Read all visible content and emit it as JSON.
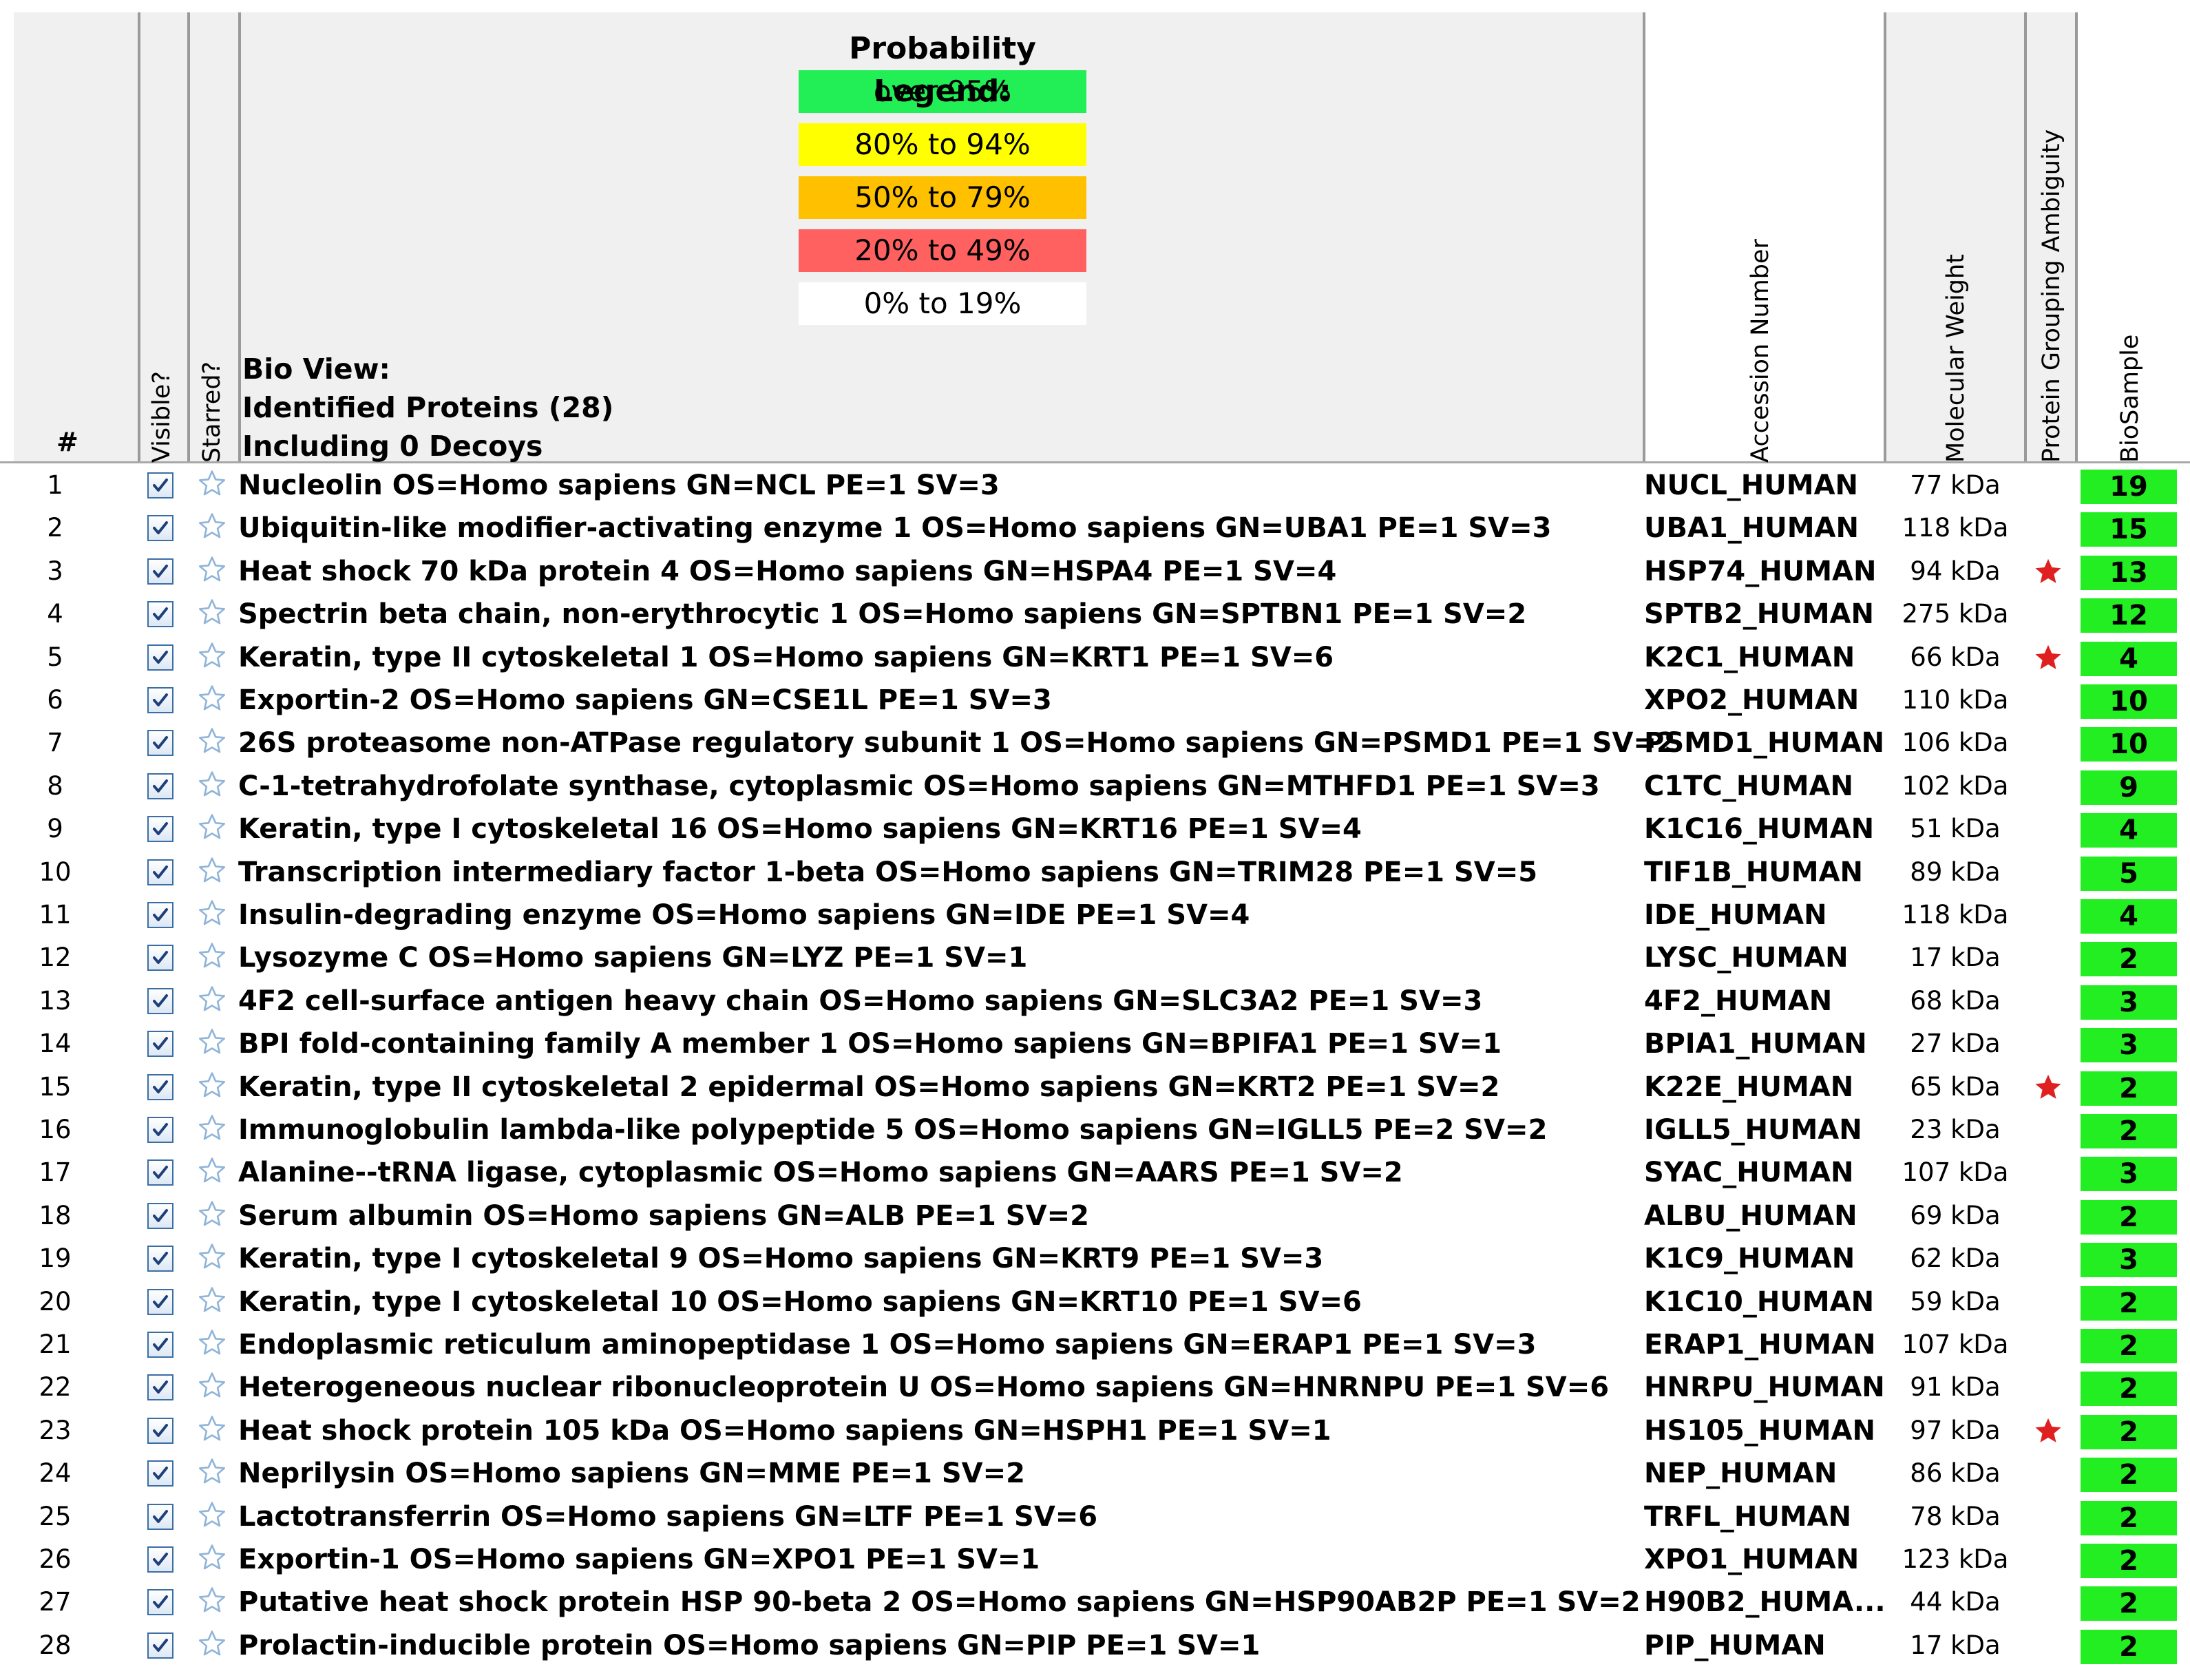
{
  "header": {
    "num_label": "#",
    "visible_label": "Visible?",
    "starred_label": "Starred?",
    "bio_view_label": "Bio View:",
    "identified_label": "Identified Proteins (28)",
    "decoys_label": "Including 0 Decoys",
    "accession_label": "Accession Number",
    "mw_label": "Molecular Weight",
    "ambiguity_label": "Protein Grouping Ambiguity",
    "biosample_label": "BioSample"
  },
  "legend": {
    "title": "Probability Legend:",
    "items": [
      {
        "label": "over 95%",
        "color": "#22ee55"
      },
      {
        "label": "80% to 94%",
        "color": "#ffff00"
      },
      {
        "label": "50% to 79%",
        "color": "#ffc000"
      },
      {
        "label": "20% to  49%",
        "color": "#ff6060"
      },
      {
        "label": "0% to 19%",
        "color": "#ffffff"
      }
    ]
  },
  "colors": {
    "biosample_cell": "#22ee22",
    "ambiguity_star": "#e02020",
    "starred_outline": "#8fb4d9",
    "checkbox_border": "#3b6ea5"
  },
  "rows": [
    {
      "num": "1",
      "desc": "Nucleolin OS=Homo sapiens GN=NCL PE=1 SV=3",
      "acc": "NUCL_HUMAN",
      "mw": "77 kDa",
      "ambiguous": false,
      "bio": "19"
    },
    {
      "num": "2",
      "desc": "Ubiquitin-like modifier-activating enzyme 1 OS=Homo sapiens GN=UBA1 PE=1 SV=3",
      "acc": "UBA1_HUMAN",
      "mw": "118 kDa",
      "ambiguous": false,
      "bio": "15"
    },
    {
      "num": "3",
      "desc": "Heat shock 70 kDa protein 4 OS=Homo sapiens GN=HSPA4 PE=1 SV=4",
      "acc": "HSP74_HUMAN",
      "mw": "94 kDa",
      "ambiguous": true,
      "bio": "13"
    },
    {
      "num": "4",
      "desc": "Spectrin beta chain, non-erythrocytic 1 OS=Homo sapiens GN=SPTBN1 PE=1 SV=2",
      "acc": "SPTB2_HUMAN",
      "mw": "275 kDa",
      "ambiguous": false,
      "bio": "12"
    },
    {
      "num": "5",
      "desc": "Keratin, type II cytoskeletal 1 OS=Homo sapiens GN=KRT1 PE=1 SV=6",
      "acc": "K2C1_HUMAN",
      "mw": "66 kDa",
      "ambiguous": true,
      "bio": "4"
    },
    {
      "num": "6",
      "desc": "Exportin-2 OS=Homo sapiens GN=CSE1L PE=1 SV=3",
      "acc": "XPO2_HUMAN",
      "mw": "110 kDa",
      "ambiguous": false,
      "bio": "10"
    },
    {
      "num": "7",
      "desc": "26S proteasome non-ATPase regulatory subunit 1 OS=Homo sapiens GN=PSMD1 PE=1 SV=2",
      "acc": "PSMD1_HUMAN",
      "mw": "106 kDa",
      "ambiguous": false,
      "bio": "10"
    },
    {
      "num": "8",
      "desc": "C-1-tetrahydrofolate synthase, cytoplasmic OS=Homo sapiens GN=MTHFD1 PE=1 SV=3",
      "acc": "C1TC_HUMAN",
      "mw": "102 kDa",
      "ambiguous": false,
      "bio": "9"
    },
    {
      "num": "9",
      "desc": "Keratin, type I cytoskeletal 16 OS=Homo sapiens GN=KRT16 PE=1 SV=4",
      "acc": "K1C16_HUMAN",
      "mw": "51 kDa",
      "ambiguous": false,
      "bio": "4"
    },
    {
      "num": "10",
      "desc": "Transcription intermediary factor 1-beta OS=Homo sapiens GN=TRIM28 PE=1 SV=5",
      "acc": "TIF1B_HUMAN",
      "mw": "89 kDa",
      "ambiguous": false,
      "bio": "5"
    },
    {
      "num": "11",
      "desc": "Insulin-degrading enzyme OS=Homo sapiens GN=IDE PE=1 SV=4",
      "acc": "IDE_HUMAN",
      "mw": "118 kDa",
      "ambiguous": false,
      "bio": "4"
    },
    {
      "num": "12",
      "desc": "Lysozyme C OS=Homo sapiens GN=LYZ PE=1 SV=1",
      "acc": "LYSC_HUMAN",
      "mw": "17 kDa",
      "ambiguous": false,
      "bio": "2"
    },
    {
      "num": "13",
      "desc": "4F2 cell-surface antigen heavy chain OS=Homo sapiens GN=SLC3A2 PE=1 SV=3",
      "acc": "4F2_HUMAN",
      "mw": "68 kDa",
      "ambiguous": false,
      "bio": "3"
    },
    {
      "num": "14",
      "desc": "BPI fold-containing family A member 1 OS=Homo sapiens GN=BPIFA1 PE=1 SV=1",
      "acc": "BPIA1_HUMAN",
      "mw": "27 kDa",
      "ambiguous": false,
      "bio": "3"
    },
    {
      "num": "15",
      "desc": "Keratin, type II cytoskeletal 2 epidermal OS=Homo sapiens GN=KRT2 PE=1 SV=2",
      "acc": "K22E_HUMAN",
      "mw": "65 kDa",
      "ambiguous": true,
      "bio": "2"
    },
    {
      "num": "16",
      "desc": "Immunoglobulin lambda-like polypeptide 5 OS=Homo sapiens GN=IGLL5 PE=2 SV=2",
      "acc": "IGLL5_HUMAN",
      "mw": "23 kDa",
      "ambiguous": false,
      "bio": "2"
    },
    {
      "num": "17",
      "desc": "Alanine--tRNA ligase, cytoplasmic OS=Homo sapiens GN=AARS PE=1 SV=2",
      "acc": "SYAC_HUMAN",
      "mw": "107 kDa",
      "ambiguous": false,
      "bio": "3"
    },
    {
      "num": "18",
      "desc": "Serum albumin OS=Homo sapiens GN=ALB PE=1 SV=2",
      "acc": "ALBU_HUMAN",
      "mw": "69 kDa",
      "ambiguous": false,
      "bio": "2"
    },
    {
      "num": "19",
      "desc": "Keratin, type I cytoskeletal 9 OS=Homo sapiens GN=KRT9 PE=1 SV=3",
      "acc": "K1C9_HUMAN",
      "mw": "62 kDa",
      "ambiguous": false,
      "bio": "3"
    },
    {
      "num": "20",
      "desc": "Keratin, type I cytoskeletal 10 OS=Homo sapiens GN=KRT10 PE=1 SV=6",
      "acc": "K1C10_HUMAN",
      "mw": "59 kDa",
      "ambiguous": false,
      "bio": "2"
    },
    {
      "num": "21",
      "desc": "Endoplasmic reticulum aminopeptidase 1 OS=Homo sapiens GN=ERAP1 PE=1 SV=3",
      "acc": "ERAP1_HUMAN",
      "mw": "107 kDa",
      "ambiguous": false,
      "bio": "2"
    },
    {
      "num": "22",
      "desc": "Heterogeneous nuclear ribonucleoprotein U OS=Homo sapiens GN=HNRNPU PE=1 SV=6",
      "acc": "HNRPU_HUMAN",
      "mw": "91 kDa",
      "ambiguous": false,
      "bio": "2"
    },
    {
      "num": "23",
      "desc": "Heat shock protein 105 kDa OS=Homo sapiens GN=HSPH1 PE=1 SV=1",
      "acc": "HS105_HUMAN",
      "mw": "97 kDa",
      "ambiguous": true,
      "bio": "2"
    },
    {
      "num": "24",
      "desc": "Neprilysin OS=Homo sapiens GN=MME PE=1 SV=2",
      "acc": "NEP_HUMAN",
      "mw": "86 kDa",
      "ambiguous": false,
      "bio": "2"
    },
    {
      "num": "25",
      "desc": "Lactotransferrin OS=Homo sapiens GN=LTF PE=1 SV=6",
      "acc": "TRFL_HUMAN",
      "mw": "78 kDa",
      "ambiguous": false,
      "bio": "2"
    },
    {
      "num": "26",
      "desc": "Exportin-1 OS=Homo sapiens GN=XPO1 PE=1 SV=1",
      "acc": "XPO1_HUMAN",
      "mw": "123 kDa",
      "ambiguous": false,
      "bio": "2"
    },
    {
      "num": "27",
      "desc": "Putative heat shock protein HSP 90-beta 2 OS=Homo sapiens GN=HSP90AB2P PE=1 SV=2",
      "acc": "H90B2_HUMA...",
      "mw": "44 kDa",
      "ambiguous": false,
      "bio": "2"
    },
    {
      "num": "28",
      "desc": "Prolactin-inducible protein OS=Homo sapiens GN=PIP PE=1 SV=1",
      "acc": "PIP_HUMAN",
      "mw": "17 kDa",
      "ambiguous": false,
      "bio": "2"
    }
  ]
}
